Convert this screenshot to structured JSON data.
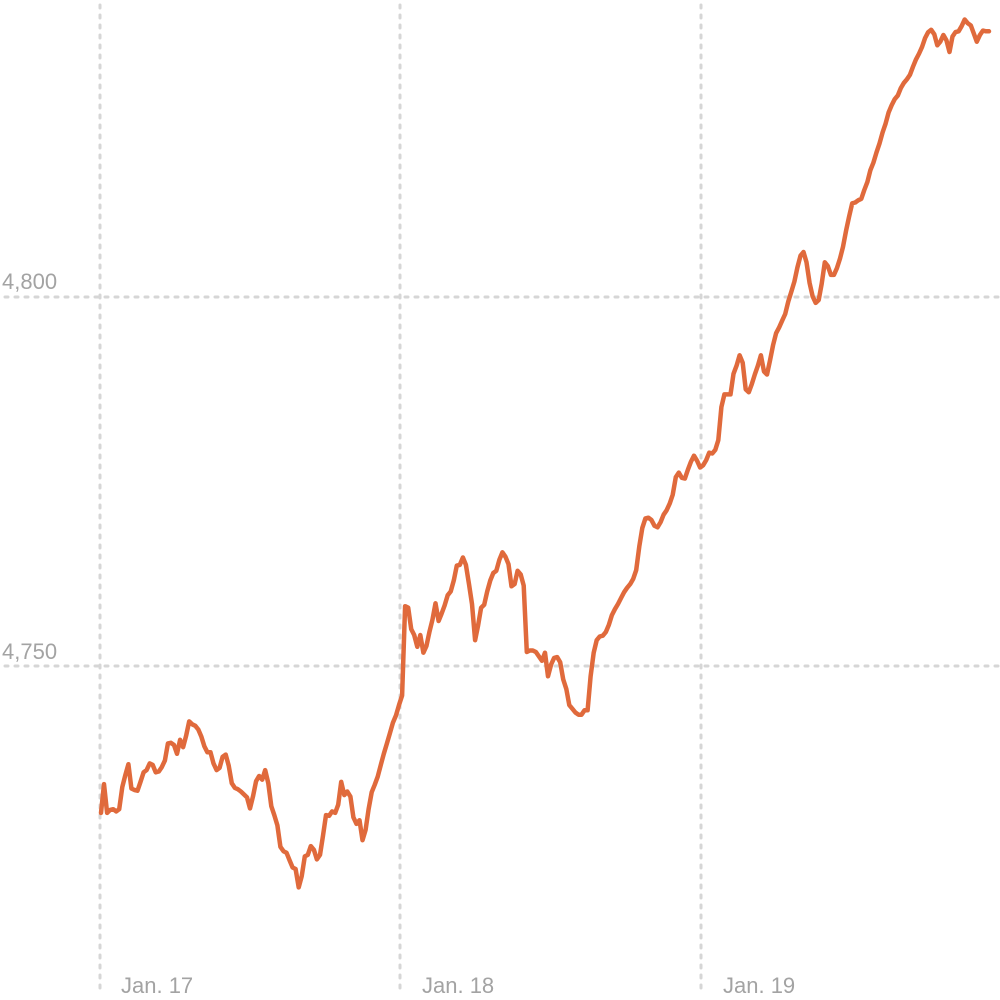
{
  "chart_data": {
    "type": "line",
    "title": "",
    "xlabel": "",
    "ylabel": "",
    "x_tick_labels": [
      "Jan. 17",
      "Jan. 18",
      "Jan. 19"
    ],
    "y_tick_labels": [
      "4,800",
      "4,750"
    ],
    "y_ticks": [
      4800,
      4750
    ],
    "ylim": [
      4717,
      4840
    ],
    "grid": true,
    "x_unit": "trading days (Jan. 17 – Jan. 19, each day ≈ 100 samples)",
    "series": [
      {
        "color": "#e06a3c",
        "values": [
          4730.1,
          4734.0,
          4730.1,
          4730.5,
          4730.6,
          4730.3,
          4730.6,
          4733.6,
          4735.2,
          4736.7,
          4733.4,
          4733.2,
          4733.1,
          4734.3,
          4735.6,
          4735.9,
          4736.8,
          4736.6,
          4735.6,
          4735.7,
          4736.3,
          4737.2,
          4739.5,
          4739.6,
          4739.3,
          4738.1,
          4740.0,
          4739.0,
          4740.6,
          4742.5,
          4742.1,
          4741.9,
          4741.4,
          4740.4,
          4739.1,
          4738.3,
          4738.3,
          4736.8,
          4735.9,
          4736.2,
          4737.7,
          4738.0,
          4736.5,
          4734.1,
          4733.5,
          4733.3,
          4733.0,
          4732.6,
          4732.2,
          4730.7,
          4732.4,
          4734.4,
          4735.1,
          4734.6,
          4735.9,
          4734.1,
          4731.0,
          4729.8,
          4728.4,
          4725.5,
          4724.9,
          4724.7,
          4723.7,
          4722.7,
          4722.5,
          4720.0,
          4721.5,
          4724.2,
          4724.4,
          4725.6,
          4725.1,
          4723.8,
          4724.4,
          4727.0,
          4729.8,
          4729.7,
          4730.3,
          4730.1,
          4731.2,
          4734.3,
          4732.5,
          4733.0,
          4732.3,
          4729.5,
          4728.6,
          4729.1,
          4726.4,
          4727.8,
          4730.6,
          4732.9,
          4733.9,
          4735.0,
          4736.6,
          4738.1,
          4739.5,
          4740.9,
          4742.3,
          4743.3,
          4744.7,
          4746.0,
          4758.1,
          4757.9,
          4755.0,
          4754.2,
          4752.6,
          4754.2,
          4751.8,
          4752.7,
          4754.6,
          4756.3,
          4758.5,
          4756.1,
          4757.1,
          4758.2,
          4759.6,
          4760.1,
          4761.6,
          4763.6,
          4763.7,
          4764.7,
          4763.7,
          4761.1,
          4758.4,
          4753.5,
          4755.5,
          4757.9,
          4758.3,
          4760.1,
          4761.6,
          4762.6,
          4762.9,
          4764.4,
          4765.4,
          4764.8,
          4763.8,
          4760.8,
          4761.1,
          4762.9,
          4762.4,
          4760.9,
          4751.9,
          4752.1,
          4752.1,
          4751.9,
          4751.3,
          4750.7,
          4751.8,
          4748.6,
          4750.2,
          4751.1,
          4751.2,
          4750.5,
          4748.2,
          4746.9,
          4744.7,
          4744.2,
          4743.7,
          4743.4,
          4743.4,
          4744.0,
          4744.0,
          4748.6,
          4751.8,
          4753.5,
          4754.0,
          4754.1,
          4754.6,
          4755.6,
          4756.9,
          4757.7,
          4758.4,
          4759.2,
          4760.0,
          4760.6,
          4761.1,
          4761.8,
          4763.0,
          4766.2,
          4768.7,
          4770.0,
          4770.1,
          4769.8,
          4769.0,
          4768.8,
          4769.5,
          4770.5,
          4771.1,
          4772.0,
          4773.2,
          4775.6,
          4776.2,
          4775.5,
          4775.4,
          4776.6,
          4777.7,
          4778.5,
          4777.8,
          4776.9,
          4777.2,
          4777.9,
          4778.9,
          4778.8,
          4779.3,
          4780.6,
          4785.1,
          4786.8,
          4786.8,
          4786.8,
          4789.6,
          4790.7,
          4792.1,
          4791.1,
          4787.5,
          4787.1,
          4788.2,
          4789.5,
          4790.7,
          4792.1,
          4789.9,
          4789.5,
          4791.4,
          4793.5,
          4795.1,
          4795.9,
          4796.8,
          4797.7,
          4799.4,
          4800.7,
          4802.1,
          4804.0,
          4805.6,
          4806.1,
          4804.7,
          4801.9,
          4800.1,
          4799.2,
          4799.6,
          4801.8,
          4804.7,
          4804.2,
          4803.0,
          4803.0,
          4803.9,
          4805.2,
          4806.8,
          4809.0,
          4810.9,
          4812.7,
          4812.8,
          4813.1,
          4813.3,
          4814.5,
          4815.6,
          4817.2,
          4818.2,
          4819.6,
          4820.8,
          4822.3,
          4823.5,
          4825.0,
          4826.0,
          4826.8,
          4827.3,
          4828.3,
          4829.0,
          4829.5,
          4830.1,
          4831.2,
          4832.2,
          4833.0,
          4833.9,
          4835.1,
          4835.9,
          4836.2,
          4835.6,
          4834.1,
          4834.6,
          4835.5,
          4834.8,
          4833.2,
          4835.3,
          4835.9,
          4836.0,
          4836.7,
          4837.6,
          4837.1,
          4836.8,
          4835.7,
          4834.6,
          4835.5,
          4836.1,
          4836.0,
          4836.0
        ]
      }
    ]
  }
}
